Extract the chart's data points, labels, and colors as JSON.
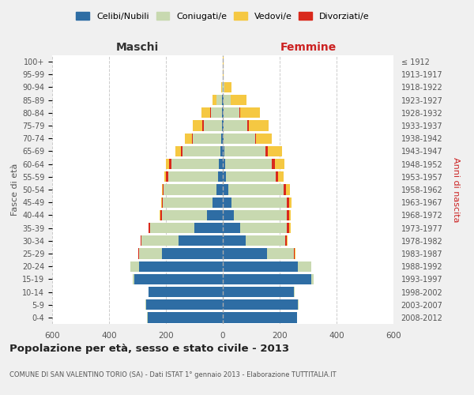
{
  "age_groups": [
    "0-4",
    "5-9",
    "10-14",
    "15-19",
    "20-24",
    "25-29",
    "30-34",
    "35-39",
    "40-44",
    "45-49",
    "50-54",
    "55-59",
    "60-64",
    "65-69",
    "70-74",
    "75-79",
    "80-84",
    "85-89",
    "90-94",
    "95-99",
    "100+"
  ],
  "birth_years": [
    "2008-2012",
    "2003-2007",
    "1998-2002",
    "1993-1997",
    "1988-1992",
    "1983-1987",
    "1978-1982",
    "1973-1977",
    "1968-1972",
    "1963-1967",
    "1958-1962",
    "1953-1957",
    "1948-1952",
    "1943-1947",
    "1938-1942",
    "1933-1937",
    "1928-1932",
    "1923-1927",
    "1918-1922",
    "1913-1917",
    "≤ 1912"
  ],
  "male_celibe": [
    265,
    270,
    260,
    310,
    295,
    215,
    155,
    100,
    55,
    35,
    22,
    18,
    15,
    8,
    5,
    3,
    2,
    2,
    0,
    0,
    0
  ],
  "male_coniugato": [
    1,
    2,
    2,
    8,
    30,
    80,
    130,
    155,
    160,
    175,
    185,
    175,
    165,
    135,
    100,
    65,
    40,
    20,
    3,
    1,
    1
  ],
  "male_vedovo": [
    0,
    0,
    0,
    0,
    0,
    0,
    0,
    1,
    1,
    2,
    2,
    5,
    12,
    20,
    25,
    35,
    30,
    15,
    2,
    0,
    0
  ],
  "male_divorziato": [
    0,
    0,
    0,
    0,
    1,
    3,
    3,
    5,
    5,
    5,
    5,
    8,
    8,
    5,
    3,
    3,
    2,
    0,
    0,
    0,
    0
  ],
  "female_celibe": [
    260,
    265,
    250,
    310,
    265,
    155,
    80,
    60,
    40,
    30,
    20,
    10,
    8,
    5,
    3,
    2,
    2,
    2,
    1,
    0,
    0
  ],
  "female_coniugato": [
    1,
    2,
    3,
    10,
    45,
    95,
    140,
    165,
    185,
    195,
    195,
    175,
    165,
    145,
    110,
    85,
    55,
    25,
    5,
    1,
    1
  ],
  "female_vedovo": [
    0,
    0,
    0,
    0,
    1,
    2,
    3,
    5,
    5,
    8,
    12,
    20,
    35,
    50,
    55,
    70,
    70,
    55,
    25,
    2,
    1
  ],
  "female_divorziato": [
    0,
    0,
    0,
    0,
    1,
    3,
    5,
    8,
    8,
    8,
    8,
    10,
    10,
    8,
    5,
    5,
    3,
    2,
    0,
    0,
    0
  ],
  "color_celibe": "#2e6da4",
  "color_coniugato": "#c8d9b0",
  "color_vedovo": "#f5c842",
  "color_divorziato": "#d9291c",
  "title": "Popolazione per età, sesso e stato civile - 2013",
  "subtitle": "COMUNE DI SAN VALENTINO TORIO (SA) - Dati ISTAT 1° gennaio 2013 - Elaborazione TUTTITALIA.IT",
  "xlabel_left": "Maschi",
  "xlabel_right": "Femmine",
  "ylabel_left": "Fasce di età",
  "ylabel_right": "Anni di nascita",
  "xlim": 600,
  "bg_color": "#f0f0f0",
  "plot_bg": "#ffffff",
  "legend_labels": [
    "Celibi/Nubili",
    "Coniugati/e",
    "Vedovi/e",
    "Divorziati/e"
  ]
}
